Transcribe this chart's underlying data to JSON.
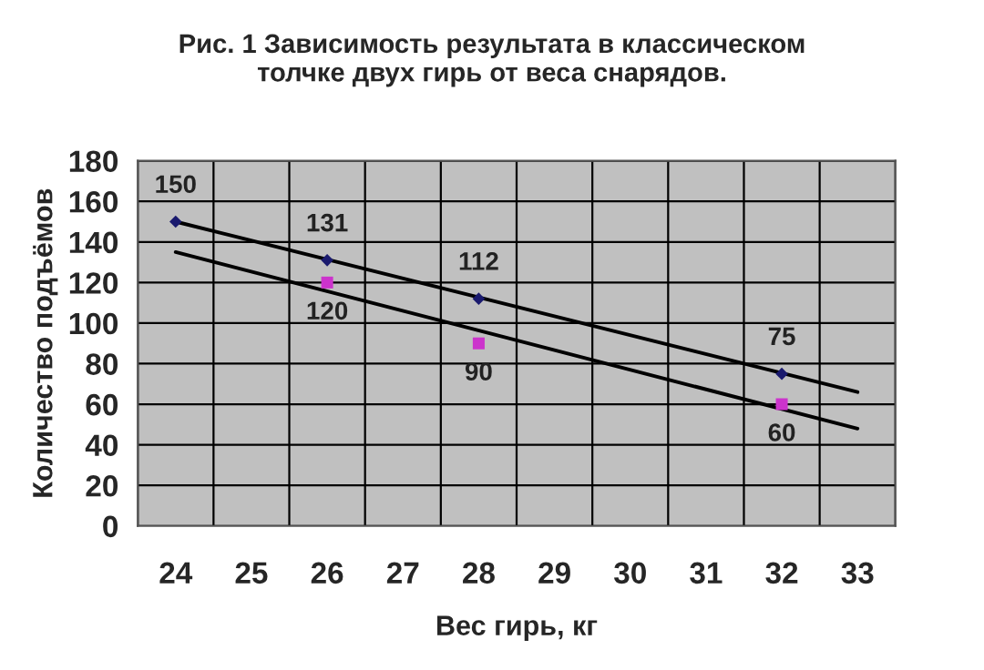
{
  "chart_data": {
    "type": "scatter",
    "title": "Рис. 1 Зависимость результата в классическом\nтолчке двух гирь от веса снарядов.",
    "xlabel": "Вес гирь, кг",
    "ylabel": "Количество подъёмов",
    "categories": [
      "24",
      "25",
      "26",
      "27",
      "28",
      "29",
      "30",
      "31",
      "32",
      "33"
    ],
    "series": [
      {
        "color": "#1a1a6e",
        "marker": "diamond",
        "data_labels": true,
        "values": [
          150,
          null,
          131,
          null,
          112,
          null,
          null,
          null,
          75,
          null
        ]
      },
      {
        "color": "#cc33cc",
        "marker": "square",
        "data_labels": true,
        "values": [
          null,
          null,
          120,
          null,
          90,
          null,
          null,
          null,
          60,
          null
        ]
      },
      {
        "type": "line",
        "color": "#000000",
        "values": [
          150,
          null,
          null,
          null,
          null,
          null,
          null,
          null,
          null,
          66
        ]
      },
      {
        "type": "line",
        "color": "#000000",
        "values": [
          135,
          null,
          null,
          null,
          null,
          null,
          null,
          null,
          null,
          48
        ]
      }
    ],
    "ylim": [
      0,
      180
    ],
    "yticks": [
      0,
      20,
      40,
      60,
      80,
      100,
      120,
      140,
      160,
      180
    ],
    "grid": true,
    "legend": false
  }
}
